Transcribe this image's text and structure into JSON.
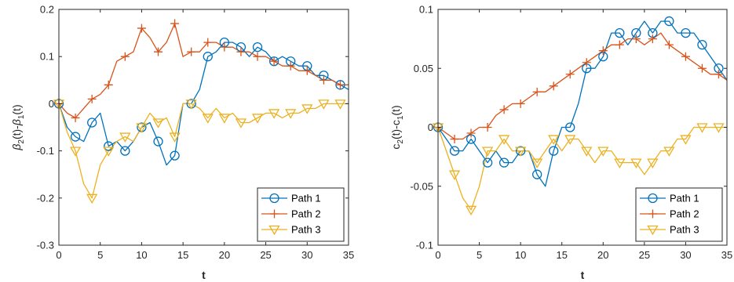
{
  "chart_data": [
    {
      "type": "line",
      "xlabel": "t",
      "ylabel_main": "β",
      "ylabel_parts": [
        "β",
        "2",
        "(t)-",
        "β",
        "1",
        "(t)"
      ],
      "xlim": [
        0,
        35
      ],
      "ylim": [
        -0.3,
        0.2
      ],
      "xticks": [
        0,
        5,
        10,
        15,
        20,
        25,
        30,
        35
      ],
      "yticks": [
        -0.3,
        -0.2,
        -0.1,
        0,
        0.1,
        0.2
      ],
      "ytick_labels": [
        "-0.3",
        "-0.2",
        "-0.1",
        "0",
        "0.1",
        "0.2"
      ],
      "grid": false,
      "legend_position": "bottom-right",
      "series": [
        {
          "name": "Path 1",
          "color": "#0072BD",
          "marker": "circle",
          "x": [
            0,
            1,
            2,
            3,
            4,
            5,
            6,
            7,
            8,
            9,
            10,
            11,
            12,
            13,
            14,
            15,
            16,
            17,
            18,
            19,
            20,
            21,
            22,
            23,
            24,
            25,
            26,
            27,
            28,
            29,
            30,
            31,
            32,
            33,
            34,
            35
          ],
          "y": [
            0,
            -0.05,
            -0.07,
            -0.08,
            -0.04,
            -0.02,
            -0.09,
            -0.08,
            -0.1,
            -0.08,
            -0.05,
            -0.04,
            -0.08,
            -0.13,
            -0.11,
            0.0,
            0.0,
            0.03,
            0.1,
            0.11,
            0.13,
            0.13,
            0.12,
            0.1,
            0.12,
            0.11,
            0.09,
            0.1,
            0.09,
            0.08,
            0.08,
            0.06,
            0.06,
            0.05,
            0.04,
            0.03
          ]
        },
        {
          "name": "Path 2",
          "color": "#D95319",
          "marker": "plus",
          "x": [
            0,
            1,
            2,
            3,
            4,
            5,
            6,
            7,
            8,
            9,
            10,
            11,
            12,
            13,
            14,
            15,
            16,
            17,
            18,
            19,
            20,
            21,
            22,
            23,
            24,
            25,
            26,
            27,
            28,
            29,
            30,
            31,
            32,
            33,
            34,
            35
          ],
          "y": [
            0,
            -0.02,
            -0.03,
            -0.01,
            0.01,
            0.02,
            0.04,
            0.09,
            0.1,
            0.11,
            0.16,
            0.14,
            0.11,
            0.13,
            0.17,
            0.1,
            0.11,
            0.11,
            0.13,
            0.13,
            0.12,
            0.12,
            0.11,
            0.11,
            0.1,
            0.1,
            0.09,
            0.08,
            0.08,
            0.07,
            0.07,
            0.06,
            0.05,
            0.05,
            0.04,
            0.04
          ]
        },
        {
          "name": "Path 3",
          "color": "#EDB120",
          "marker": "triangle-down",
          "x": [
            0,
            1,
            2,
            3,
            4,
            5,
            6,
            7,
            8,
            9,
            10,
            11,
            12,
            13,
            14,
            15,
            16,
            17,
            18,
            19,
            20,
            21,
            22,
            23,
            24,
            25,
            26,
            27,
            28,
            29,
            30,
            31,
            32,
            33,
            34,
            35
          ],
          "y": [
            0,
            -0.06,
            -0.1,
            -0.17,
            -0.2,
            -0.13,
            -0.1,
            -0.08,
            -0.07,
            -0.08,
            -0.05,
            -0.02,
            -0.04,
            -0.03,
            -0.07,
            0.0,
            0.0,
            -0.01,
            -0.03,
            -0.01,
            -0.03,
            -0.02,
            -0.04,
            -0.04,
            -0.03,
            -0.02,
            -0.02,
            -0.03,
            -0.02,
            -0.02,
            -0.01,
            -0.01,
            0.0,
            0.0,
            0.0,
            0.0
          ]
        }
      ]
    },
    {
      "type": "line",
      "xlabel": "t",
      "ylabel_parts": [
        "c",
        "2",
        "(t)-c",
        "1",
        "(t)"
      ],
      "xlim": [
        0,
        35
      ],
      "ylim": [
        -0.1,
        0.1
      ],
      "xticks": [
        0,
        5,
        10,
        15,
        20,
        25,
        30,
        35
      ],
      "yticks": [
        -0.1,
        -0.05,
        0,
        0.05,
        0.1
      ],
      "ytick_labels": [
        "-0.1",
        "-0.05",
        "0",
        "0.05",
        "0.1"
      ],
      "grid": false,
      "legend_position": "bottom-right",
      "series": [
        {
          "name": "Path 1",
          "color": "#0072BD",
          "marker": "circle",
          "x": [
            0,
            1,
            2,
            3,
            4,
            5,
            6,
            7,
            8,
            9,
            10,
            11,
            12,
            13,
            14,
            15,
            16,
            17,
            18,
            19,
            20,
            21,
            22,
            23,
            24,
            25,
            26,
            27,
            28,
            29,
            30,
            31,
            32,
            33,
            34,
            35
          ],
          "y": [
            0,
            -0.01,
            -0.02,
            -0.02,
            -0.01,
            -0.02,
            -0.03,
            -0.02,
            -0.03,
            -0.03,
            -0.02,
            -0.02,
            -0.04,
            -0.05,
            -0.02,
            0.0,
            0.0,
            0.02,
            0.05,
            0.05,
            0.06,
            0.08,
            0.08,
            0.07,
            0.08,
            0.09,
            0.08,
            0.09,
            0.09,
            0.08,
            0.08,
            0.08,
            0.07,
            0.06,
            0.05,
            0.04
          ]
        },
        {
          "name": "Path 2",
          "color": "#D95319",
          "marker": "plus",
          "x": [
            0,
            1,
            2,
            3,
            4,
            5,
            6,
            7,
            8,
            9,
            10,
            11,
            12,
            13,
            14,
            15,
            16,
            17,
            18,
            19,
            20,
            21,
            22,
            23,
            24,
            25,
            26,
            27,
            28,
            29,
            30,
            31,
            32,
            33,
            34,
            35
          ],
          "y": [
            0,
            -0.005,
            -0.01,
            -0.01,
            -0.005,
            0.0,
            0.0,
            0.01,
            0.015,
            0.02,
            0.02,
            0.025,
            0.03,
            0.03,
            0.035,
            0.04,
            0.045,
            0.05,
            0.055,
            0.06,
            0.065,
            0.07,
            0.07,
            0.075,
            0.075,
            0.07,
            0.075,
            0.08,
            0.07,
            0.065,
            0.06,
            0.055,
            0.05,
            0.045,
            0.045,
            0.04
          ]
        },
        {
          "name": "Path 3",
          "color": "#EDB120",
          "marker": "triangle-down",
          "x": [
            0,
            1,
            2,
            3,
            4,
            5,
            6,
            7,
            8,
            9,
            10,
            11,
            12,
            13,
            14,
            15,
            16,
            17,
            18,
            19,
            20,
            21,
            22,
            23,
            24,
            25,
            26,
            27,
            28,
            29,
            30,
            31,
            32,
            33,
            34,
            35
          ],
          "y": [
            0,
            -0.02,
            -0.04,
            -0.06,
            -0.07,
            -0.05,
            -0.02,
            -0.02,
            -0.01,
            -0.02,
            -0.02,
            -0.02,
            -0.03,
            -0.02,
            -0.01,
            -0.02,
            -0.01,
            -0.01,
            -0.02,
            -0.03,
            -0.02,
            -0.02,
            -0.03,
            -0.03,
            -0.03,
            -0.04,
            -0.03,
            -0.02,
            -0.02,
            -0.01,
            -0.01,
            0.0,
            0.0,
            0.0,
            0.0,
            0.0
          ]
        }
      ]
    }
  ]
}
